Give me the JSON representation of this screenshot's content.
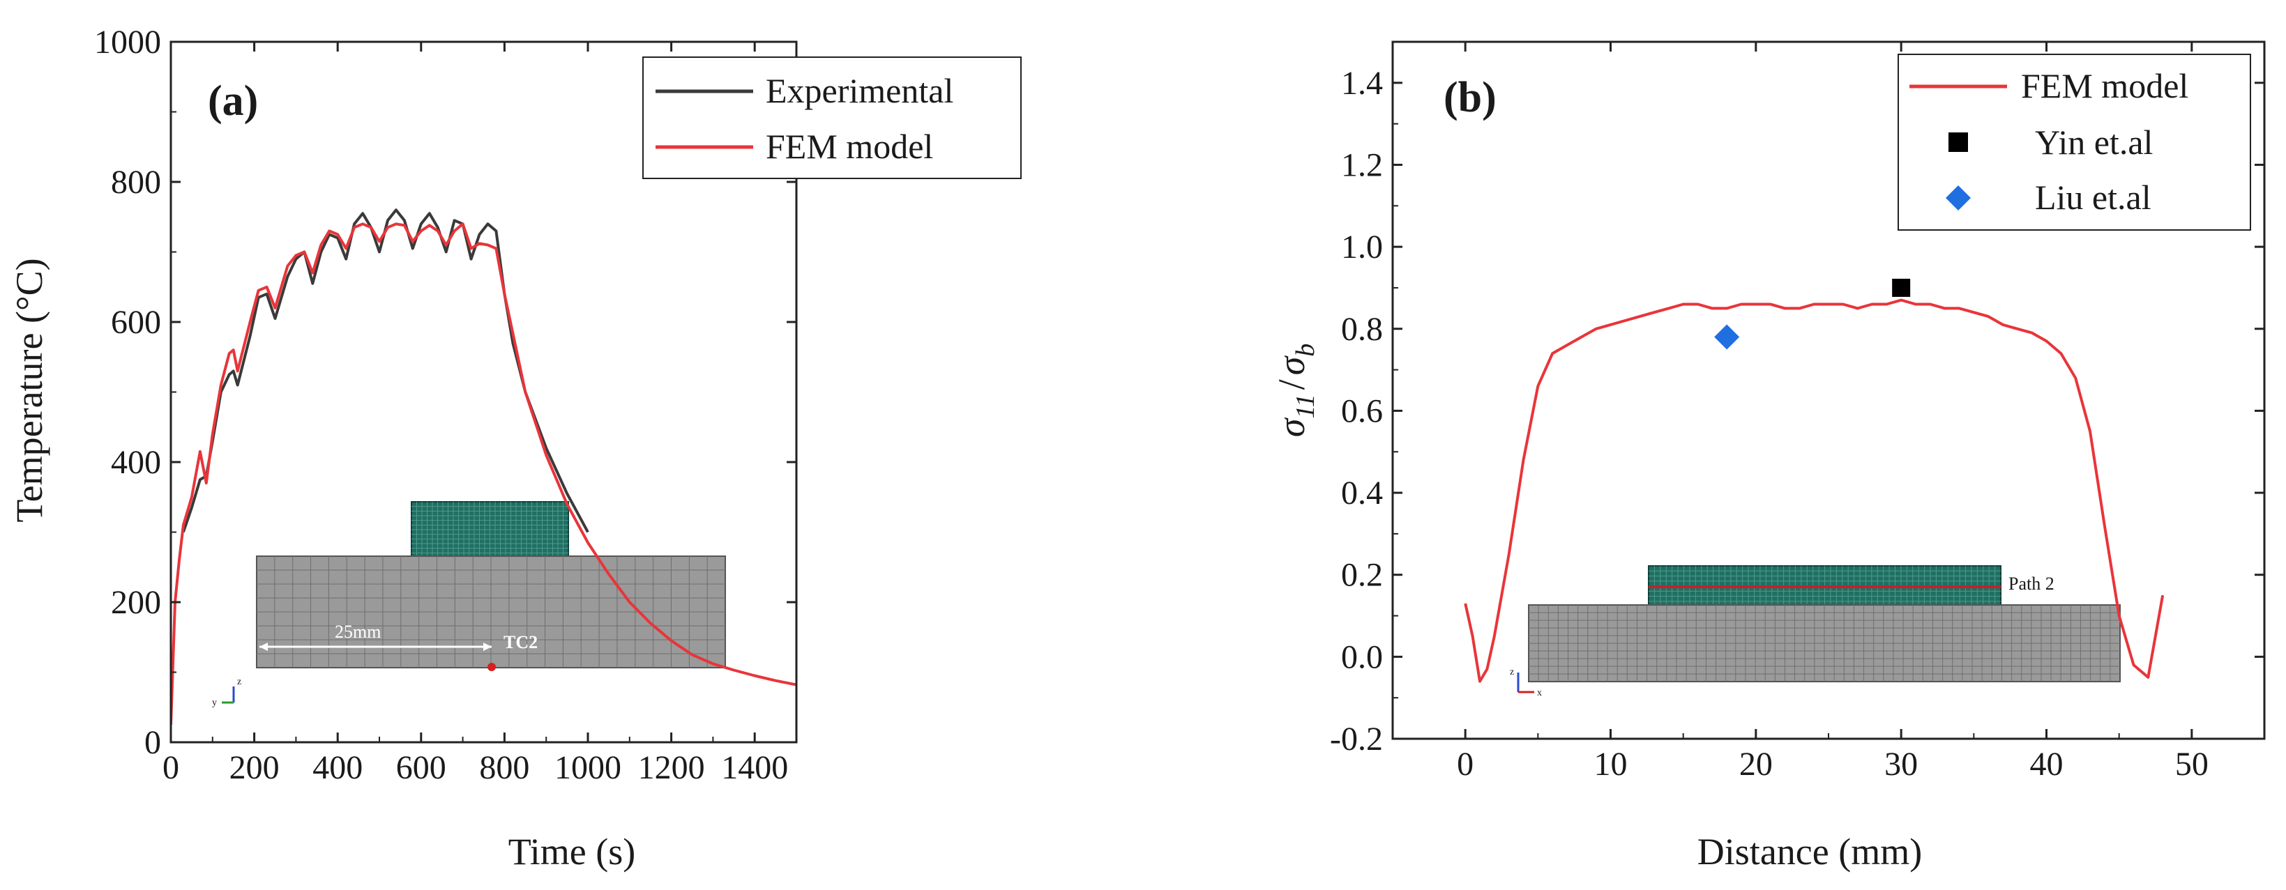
{
  "chart_data": [
    {
      "type": "line",
      "panel_label": "(a)",
      "xlabel": "Time (s)",
      "ylabel": "Temperature (°C)",
      "xlim": [
        0,
        1500
      ],
      "ylim": [
        0,
        1000
      ],
      "xticks": [
        0,
        200,
        400,
        600,
        800,
        1000,
        1200,
        1400
      ],
      "yticks": [
        0,
        200,
        400,
        600,
        800,
        1000
      ],
      "legend_position": "top-right",
      "series": [
        {
          "name": "Experimental",
          "color": "#3a3a3a",
          "x": [
            30,
            50,
            70,
            85,
            100,
            120,
            140,
            150,
            160,
            190,
            210,
            230,
            250,
            280,
            300,
            320,
            340,
            360,
            380,
            400,
            420,
            440,
            460,
            480,
            500,
            520,
            540,
            560,
            580,
            600,
            620,
            640,
            660,
            680,
            700,
            720,
            740,
            760,
            780,
            800,
            820,
            850,
            900,
            950,
            1000
          ],
          "y": [
            300,
            335,
            375,
            380,
            430,
            500,
            525,
            530,
            510,
            580,
            635,
            640,
            605,
            665,
            690,
            700,
            655,
            700,
            725,
            720,
            690,
            740,
            755,
            735,
            700,
            745,
            760,
            745,
            705,
            740,
            755,
            735,
            700,
            745,
            740,
            690,
            725,
            740,
            730,
            640,
            570,
            500,
            420,
            355,
            300
          ]
        },
        {
          "name": "FEM model",
          "color": "#e8353a",
          "x": [
            0,
            10,
            20,
            30,
            50,
            70,
            85,
            100,
            120,
            140,
            150,
            160,
            190,
            210,
            230,
            250,
            280,
            300,
            320,
            340,
            360,
            380,
            400,
            420,
            440,
            460,
            480,
            500,
            520,
            540,
            560,
            580,
            600,
            620,
            640,
            660,
            680,
            700,
            720,
            740,
            760,
            780,
            800,
            850,
            900,
            950,
            1000,
            1050,
            1100,
            1150,
            1200,
            1250,
            1300,
            1350,
            1400,
            1450,
            1500
          ],
          "y": [
            25,
            200,
            260,
            310,
            350,
            415,
            370,
            440,
            510,
            555,
            560,
            530,
            600,
            645,
            650,
            620,
            680,
            695,
            700,
            670,
            710,
            730,
            725,
            705,
            735,
            740,
            735,
            715,
            735,
            740,
            738,
            715,
            730,
            738,
            730,
            710,
            730,
            740,
            705,
            712,
            710,
            705,
            640,
            500,
            410,
            340,
            285,
            240,
            200,
            170,
            145,
            125,
            112,
            103,
            95,
            88,
            82
          ]
        }
      ],
      "inset": {
        "dimension_label": "25mm",
        "thermocouple_label": "TC2",
        "axis_labels": [
          "z",
          "y"
        ]
      }
    },
    {
      "type": "line",
      "panel_label": "(b)",
      "xlabel": "Distance (mm)",
      "ylabel": "σ11 / σb",
      "ylabel_parts": {
        "sigma": "σ",
        "sub1": "11",
        "slash": "/",
        "sub2": "b"
      },
      "xlim": [
        -5,
        55
      ],
      "ylim": [
        -0.2,
        1.5
      ],
      "xticks": [
        0,
        10,
        20,
        30,
        40,
        50
      ],
      "yticks": [
        -0.2,
        0.0,
        0.2,
        0.4,
        0.6,
        0.8,
        1.0,
        1.2,
        1.4
      ],
      "ytick_labels": [
        "-0.2",
        "0.0",
        "0.2",
        "0.4",
        "0.6",
        "0.8",
        "1.0",
        "1.2",
        "1.4"
      ],
      "legend_position": "top-right",
      "series": [
        {
          "name": "FEM model",
          "color": "#e8353a",
          "kind": "line",
          "x": [
            0,
            0.5,
            1,
            1.5,
            2,
            3,
            4,
            5,
            6,
            7,
            8,
            9,
            10,
            11,
            12,
            13,
            14,
            15,
            16,
            17,
            18,
            19,
            20,
            21,
            22,
            23,
            24,
            25,
            26,
            27,
            28,
            29,
            30,
            31,
            32,
            33,
            34,
            35,
            36,
            37,
            38,
            39,
            40,
            41,
            42,
            43,
            44,
            45,
            46,
            47,
            48
          ],
          "y": [
            0.13,
            0.05,
            -0.06,
            -0.03,
            0.05,
            0.25,
            0.48,
            0.66,
            0.74,
            0.76,
            0.78,
            0.8,
            0.81,
            0.82,
            0.83,
            0.84,
            0.85,
            0.86,
            0.86,
            0.85,
            0.85,
            0.86,
            0.86,
            0.86,
            0.85,
            0.85,
            0.86,
            0.86,
            0.86,
            0.85,
            0.86,
            0.86,
            0.87,
            0.86,
            0.86,
            0.85,
            0.85,
            0.84,
            0.83,
            0.81,
            0.8,
            0.79,
            0.77,
            0.74,
            0.68,
            0.55,
            0.32,
            0.1,
            -0.02,
            -0.05,
            0.15
          ]
        },
        {
          "name": "Yin et.al",
          "color": "#000000",
          "kind": "square",
          "x": [
            30
          ],
          "y": [
            0.9
          ]
        },
        {
          "name": "Liu et.al",
          "color": "#1f6fe0",
          "kind": "diamond",
          "x": [
            18
          ],
          "y": [
            0.78
          ]
        }
      ],
      "inset": {
        "path_label": "Path 2",
        "axis_labels": [
          "z",
          "x"
        ]
      }
    }
  ]
}
